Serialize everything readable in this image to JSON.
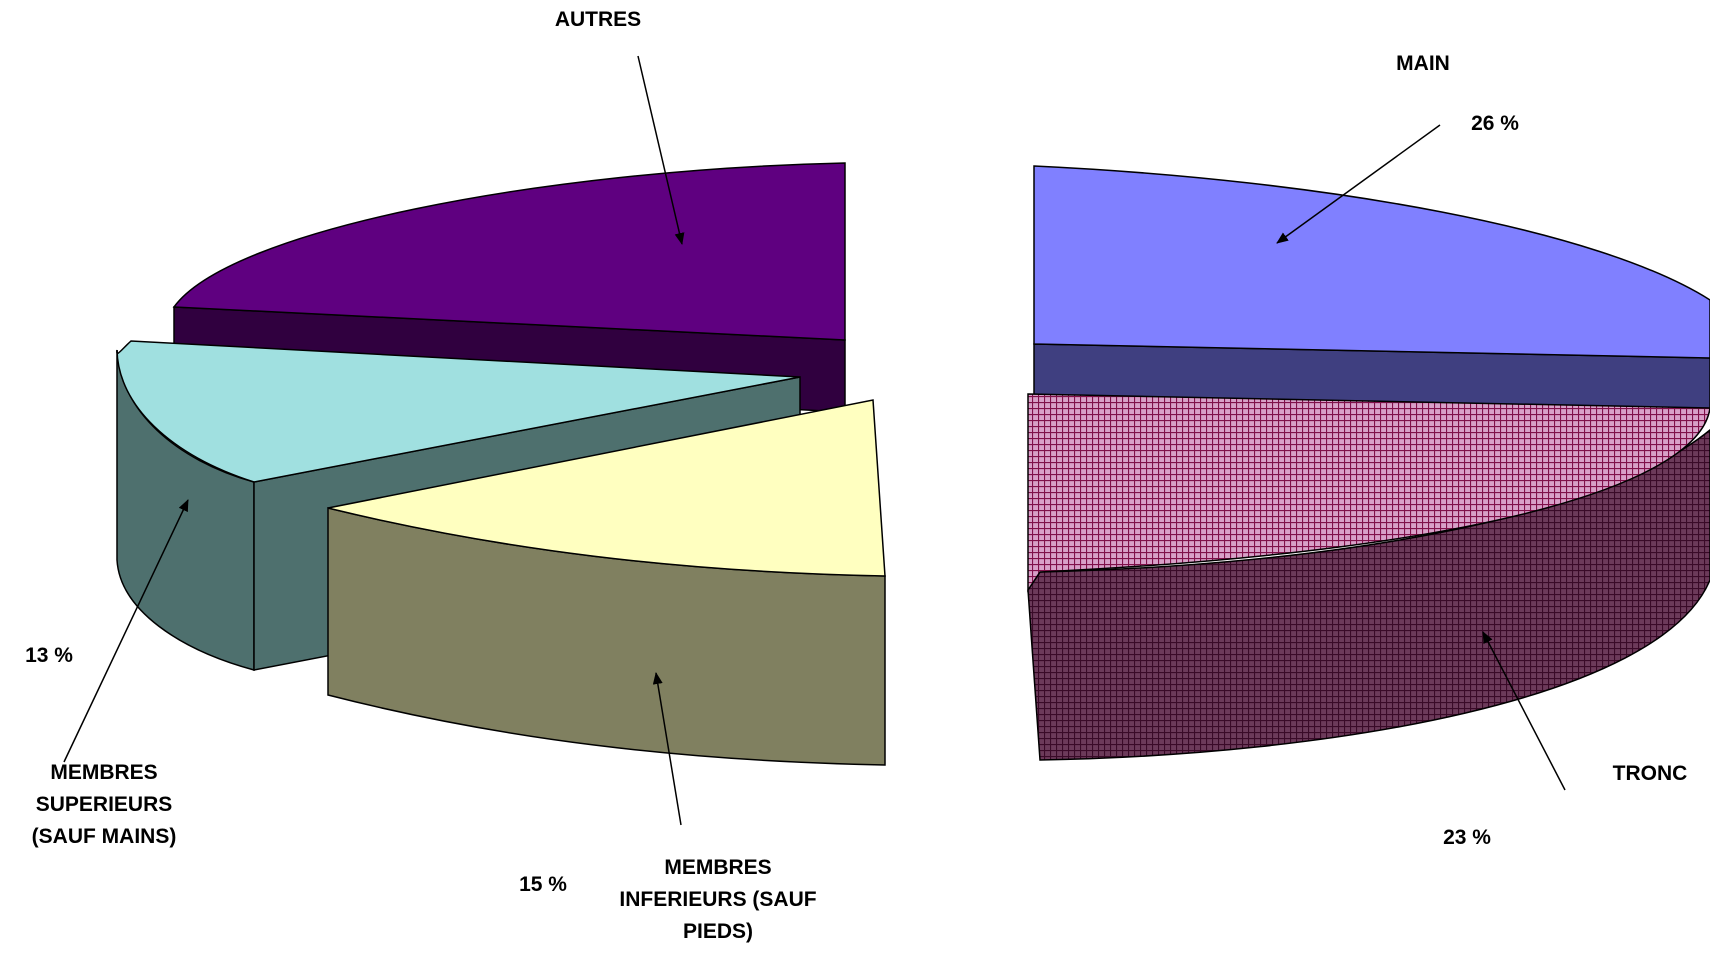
{
  "chart_data": {
    "type": "pie",
    "style": "3d-exploded",
    "slices": [
      {
        "label": "MAIN",
        "value": 26,
        "value_text": "26 %",
        "color": "#8080ff",
        "side_color": "#3f3f80",
        "pattern": "none"
      },
      {
        "label": "TRONC",
        "value": 23,
        "value_text": "23 %",
        "color": "#d8a0c8",
        "side_color": "#6c3a5a",
        "pattern": "grid"
      },
      {
        "label": "MEMBRES INFERIEURS (SAUF PIEDS)",
        "value": 15,
        "value_text": "15 %",
        "color": "#ffffc0",
        "side_color": "#808060",
        "pattern": "none"
      },
      {
        "label": "MEMBRES SUPERIEURS (SAUF MAINS)",
        "value": 13,
        "value_text": "13 %",
        "color": "#a0e0e0",
        "side_color": "#4e706e",
        "pattern": "none"
      },
      {
        "label": "AUTRES",
        "value_text": "",
        "color": "#5f0080",
        "side_color": "#30003f",
        "pattern": "none"
      }
    ]
  },
  "labels": {
    "autres": "AUTRES",
    "main": "MAIN",
    "main_pct": "26 %",
    "tronc": "TRONC",
    "tronc_pct": "23 %",
    "sup_pct": "13 %",
    "sup_name": "MEMBRES\nSUPERIEURS\n(SAUF MAINS)",
    "inf_pct": "15 %",
    "inf_name": "MEMBRES\nINFERIEURS (SAUF\nPIEDS)"
  }
}
